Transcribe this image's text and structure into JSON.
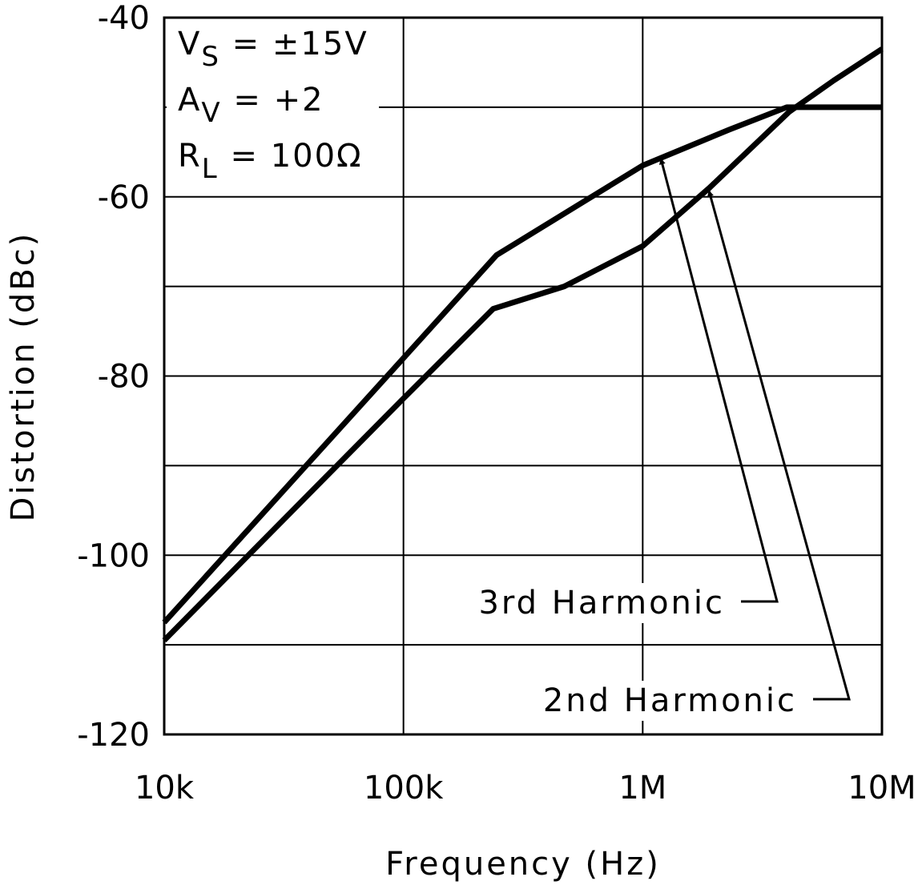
{
  "chart_data": {
    "type": "line",
    "x_label": "Frequency (Hz)",
    "y_label": "Distortion (dBc)",
    "xscale": "log",
    "xlim": [
      10000,
      10000000
    ],
    "xticks": [
      {
        "value": 10000,
        "label": "10k"
      },
      {
        "value": 100000,
        "label": "100k"
      },
      {
        "value": 1000000,
        "label": "1M"
      },
      {
        "value": 10000000,
        "label": "10M"
      }
    ],
    "ylim": [
      -120,
      -40
    ],
    "yticks": [
      -120,
      -100,
      -80,
      -60,
      -40
    ],
    "yminor": [
      -110,
      -90,
      -70,
      -50
    ],
    "grid": true,
    "annotations": [
      {
        "main": "V",
        "sub": "S",
        "rest": " = ±15V"
      },
      {
        "main": "A",
        "sub": "V",
        "rest": " = +2"
      },
      {
        "main": "R",
        "sub": "L",
        "rest": " = 100Ω"
      }
    ],
    "series": [
      {
        "name": "3rd Harmonic",
        "color": "#000000",
        "x": [
          10000,
          100000,
          245000,
          1000000,
          2300000,
          4000000,
          10000000
        ],
        "values": [
          -107.5,
          -78,
          -66.5,
          -56.5,
          -52.5,
          -50,
          -50
        ]
      },
      {
        "name": "2nd Harmonic",
        "color": "#000000",
        "x": [
          10000,
          100000,
          237000,
          470000,
          1000000,
          1900000,
          4100000,
          6300000,
          10000000
        ],
        "values": [
          -109.5,
          -82.5,
          -72.5,
          -70,
          -65.5,
          -59,
          -50.5,
          -47,
          -43.5
        ]
      }
    ]
  }
}
